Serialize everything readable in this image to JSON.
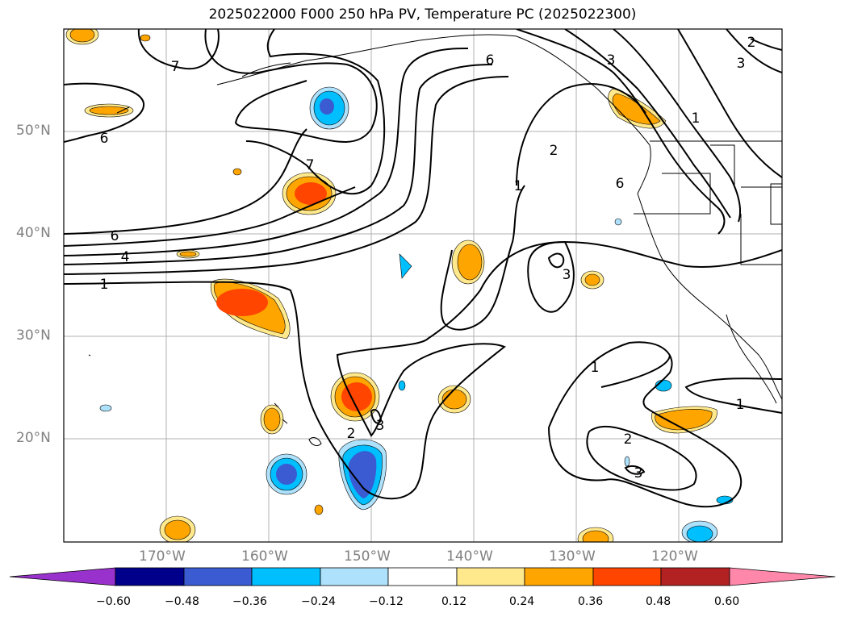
{
  "title": "2025022000 F000 250 hPa PV, Temperature PC (2025022300)",
  "lat_labels": [
    "50°N",
    "40°N",
    "30°N",
    "20°N"
  ],
  "lon_labels": [
    "170°W",
    "160°W",
    "150°W",
    "140°W",
    "130°W",
    "120°W"
  ],
  "colorbar": {
    "ticks": [
      "−0.60",
      "−0.48",
      "−0.36",
      "−0.24",
      "−0.12",
      "0.12",
      "0.24",
      "0.36",
      "0.48",
      "0.60"
    ],
    "colors": [
      "#9932cc",
      "#00008b",
      "#3a5bd1",
      "#00bfff",
      "#aee1fb",
      "#ffffff",
      "#ffe98c",
      "#ffa500",
      "#ff4500",
      "#b22222",
      "#ff88aa"
    ]
  },
  "contour_labels": [
    "7",
    "6",
    "6",
    "4",
    "1",
    "7",
    "6",
    "2",
    "1",
    "3",
    "6",
    "1",
    "3",
    "1",
    "2",
    "3",
    "3",
    "2",
    "1",
    "2",
    "3"
  ]
}
